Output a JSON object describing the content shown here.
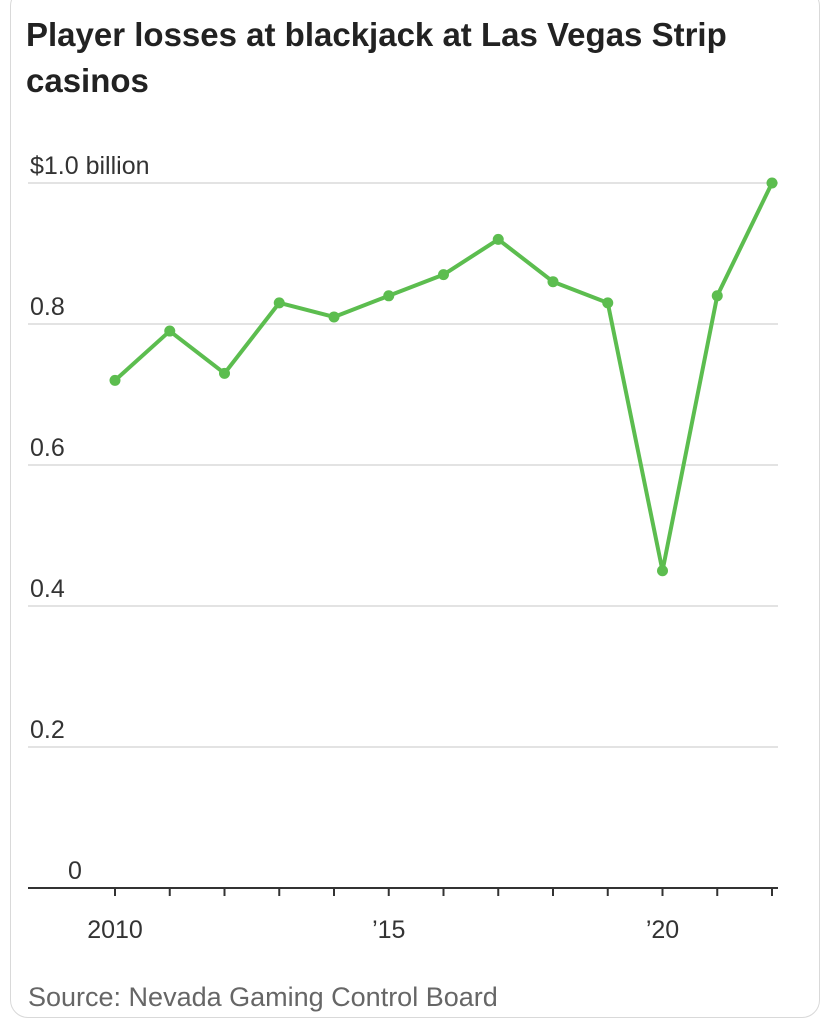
{
  "chart_data": {
    "type": "line",
    "title": "Player losses at blackjack at Las Vegas Strip casinos",
    "source": "Source: Nevada Gaming Control Board",
    "xlabel": "",
    "ylabel": "",
    "xlim": [
      2010,
      2022
    ],
    "ylim": [
      0,
      1.0
    ],
    "grid": true,
    "y_ticks": [
      {
        "value": 0,
        "label": "0"
      },
      {
        "value": 0.2,
        "label": "0.2"
      },
      {
        "value": 0.4,
        "label": "0.4"
      },
      {
        "value": 0.6,
        "label": "0.6"
      },
      {
        "value": 0.8,
        "label": "0.8"
      },
      {
        "value": 1.0,
        "label": "$1.0 billion"
      }
    ],
    "x_tick_positions": [
      2010,
      2011,
      2012,
      2013,
      2014,
      2015,
      2016,
      2017,
      2018,
      2019,
      2020,
      2021,
      2022
    ],
    "x_tick_labels": [
      {
        "value": 2010,
        "label": "2010"
      },
      {
        "value": 2015,
        "label": "’15"
      },
      {
        "value": 2020,
        "label": "’20"
      }
    ],
    "series": [
      {
        "color": "#5cbd4f",
        "x": [
          2010,
          2011,
          2012,
          2013,
          2014,
          2015,
          2016,
          2017,
          2018,
          2019,
          2020,
          2021,
          2022
        ],
        "values": [
          0.72,
          0.79,
          0.73,
          0.83,
          0.81,
          0.84,
          0.87,
          0.92,
          0.86,
          0.83,
          0.45,
          0.84,
          1.0
        ]
      }
    ]
  }
}
